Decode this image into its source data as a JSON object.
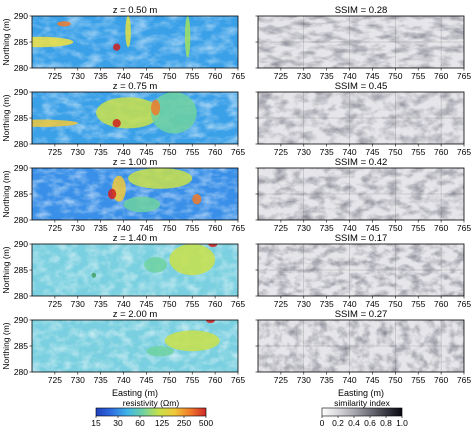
{
  "rows": [
    {
      "title": "z = 0.50 m",
      "ssim": "SSIM = 0.28",
      "z": 0.5,
      "ssim_value": 0.28
    },
    {
      "title": "z = 0.75 m",
      "ssim": "SSIM = 0.45",
      "z": 0.75,
      "ssim_value": 0.45
    },
    {
      "title": "z = 1.00 m",
      "ssim": "SSIM = 0.42",
      "z": 1.0,
      "ssim_value": 0.42
    },
    {
      "title": "z = 1.40 m",
      "ssim": "SSIM = 0.17",
      "z": 1.4,
      "ssim_value": 0.17
    },
    {
      "title": "z = 2.00 m",
      "ssim": "SSIM = 0.27",
      "z": 2.0,
      "ssim_value": 0.27
    }
  ],
  "axes": {
    "ylabel": "Northing (m)",
    "xlabel": "Easting (m)",
    "xticks": [
      "725",
      "730",
      "735",
      "740",
      "745",
      "750",
      "755",
      "760",
      "765"
    ],
    "yticks": [
      "290",
      "285",
      "280"
    ]
  },
  "colorbars": {
    "resistivity": {
      "label": "resistivity (Ωm)",
      "ticks": [
        "15",
        "30",
        "60",
        "125",
        "250",
        "500"
      ],
      "colors": [
        "#1f3fbf",
        "#2f6fe0",
        "#3fb4e8",
        "#6fd2a0",
        "#c8e04a",
        "#f0c83a",
        "#f07a2a",
        "#d0282a"
      ]
    },
    "similarity": {
      "label": "similarity index",
      "ticks": [
        "0",
        "0.2",
        "0.4",
        "0.6",
        "0.8",
        "1.0"
      ],
      "colors": [
        "#ffffff",
        "#d8d8dc",
        "#a8a8b0",
        "#70707a",
        "#3a3a44",
        "#0a0a14"
      ]
    }
  },
  "chart_data": [
    {
      "type": "heatmap",
      "title": "z = 0.50 m",
      "xlabel": "",
      "ylabel": "Northing (m)",
      "xlim": [
        720,
        765
      ],
      "ylim": [
        280,
        290
      ]
    },
    {
      "type": "heatmap",
      "title": "SSIM = 0.28",
      "xlim": [
        720,
        765
      ],
      "ylim": [
        280,
        290
      ]
    },
    {
      "type": "heatmap",
      "title": "z = 0.75 m",
      "xlabel": "",
      "ylabel": "Northing (m)",
      "xlim": [
        720,
        765
      ],
      "ylim": [
        280,
        290
      ]
    },
    {
      "type": "heatmap",
      "title": "SSIM = 0.45",
      "xlim": [
        720,
        765
      ],
      "ylim": [
        280,
        290
      ]
    },
    {
      "type": "heatmap",
      "title": "z = 1.00 m",
      "xlabel": "",
      "ylabel": "Northing (m)",
      "xlim": [
        720,
        765
      ],
      "ylim": [
        280,
        290
      ]
    },
    {
      "type": "heatmap",
      "title": "SSIM = 0.42",
      "xlim": [
        720,
        765
      ],
      "ylim": [
        280,
        290
      ]
    },
    {
      "type": "heatmap",
      "title": "z = 1.40 m",
      "xlabel": "",
      "ylabel": "Northing (m)",
      "xlim": [
        720,
        765
      ],
      "ylim": [
        280,
        290
      ]
    },
    {
      "type": "heatmap",
      "title": "SSIM = 0.17",
      "xlim": [
        720,
        765
      ],
      "ylim": [
        280,
        290
      ]
    },
    {
      "type": "heatmap",
      "title": "z = 2.00 m",
      "xlabel": "Easting (m)",
      "ylabel": "Northing (m)",
      "xlim": [
        720,
        765
      ],
      "ylim": [
        280,
        290
      ]
    },
    {
      "type": "heatmap",
      "title": "SSIM = 0.27",
      "xlabel": "Easting (m)",
      "xlim": [
        720,
        765
      ],
      "ylim": [
        280,
        290
      ]
    }
  ]
}
